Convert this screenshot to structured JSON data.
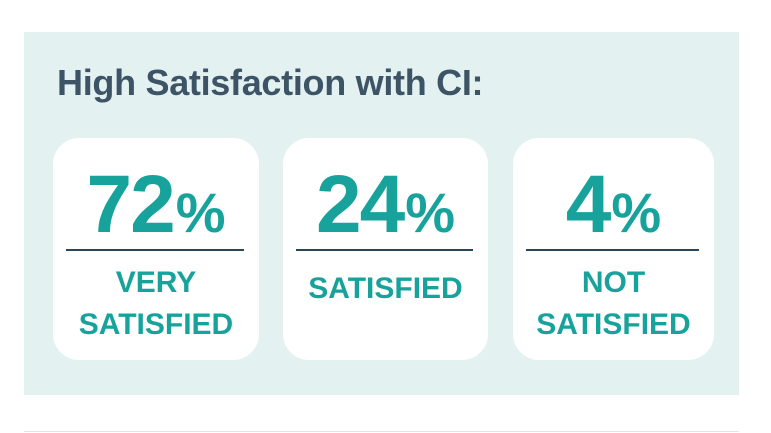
{
  "title": "High Satisfaction with CI:",
  "cards": [
    {
      "value": "72",
      "unit": "%",
      "label": "VERY SATISFIED"
    },
    {
      "value": "24",
      "unit": "%",
      "label": "SATISFIED"
    },
    {
      "value": "4",
      "unit": "%",
      "label": "NOT SATISFIED"
    }
  ]
}
